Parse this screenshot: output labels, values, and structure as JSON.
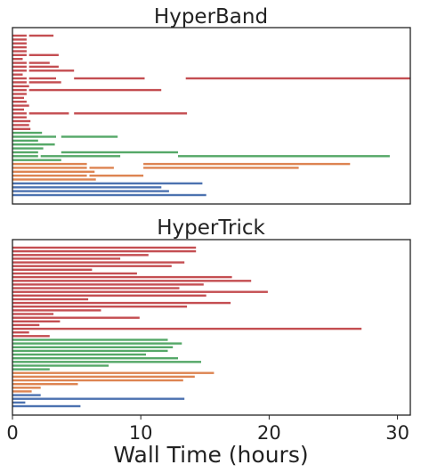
{
  "chart_data": [
    {
      "type": "bar",
      "title": "HyperBand",
      "xlabel": "Wall Time (hours)",
      "ylabel": "",
      "xlim": [
        0,
        31
      ],
      "grid": false,
      "xticks": [
        0,
        10,
        20,
        30
      ],
      "rows": [
        {
          "color": "#c44e52",
          "segments": [
            [
              0,
              1.1
            ],
            [
              1.3,
              3.2
            ]
          ]
        },
        {
          "color": "#c44e52",
          "segments": [
            [
              0,
              1.1
            ]
          ]
        },
        {
          "color": "#c44e52",
          "segments": [
            [
              0,
              1.1
            ]
          ]
        },
        {
          "color": "#c44e52",
          "segments": [
            [
              0,
              1.1
            ]
          ]
        },
        {
          "color": "#c44e52",
          "segments": [
            [
              0,
              1.1
            ]
          ]
        },
        {
          "color": "#c44e52",
          "segments": [
            [
              0,
              1.1
            ],
            [
              1.3,
              3.6
            ]
          ]
        },
        {
          "color": "#c44e52",
          "segments": [
            [
              0,
              0.8
            ]
          ]
        },
        {
          "color": "#c44e52",
          "segments": [
            [
              0,
              1.1
            ],
            [
              1.3,
              2.9
            ]
          ]
        },
        {
          "color": "#c44e52",
          "segments": [
            [
              0,
              1.1
            ],
            [
              1.3,
              3.6
            ]
          ]
        },
        {
          "color": "#c44e52",
          "segments": [
            [
              0,
              1.1
            ],
            [
              1.3,
              4.8
            ]
          ]
        },
        {
          "color": "#c44e52",
          "segments": [
            [
              0,
              0.8
            ]
          ]
        },
        {
          "color": "#c44e52",
          "segments": [
            [
              0,
              1.1
            ],
            [
              1.3,
              3.4
            ],
            [
              4.8,
              10.3
            ],
            [
              13.5,
              31
            ]
          ]
        },
        {
          "color": "#c44e52",
          "segments": [
            [
              0,
              1.1
            ],
            [
              1.3,
              3.8
            ]
          ]
        },
        {
          "color": "#c44e52",
          "segments": [
            [
              0,
              1.3
            ]
          ]
        },
        {
          "color": "#c44e52",
          "segments": [
            [
              0,
              1.1
            ],
            [
              1.3,
              11.6
            ]
          ]
        },
        {
          "color": "#c44e52",
          "segments": [
            [
              0,
              1.1
            ]
          ]
        },
        {
          "color": "#c44e52",
          "segments": [
            [
              0,
              0.9
            ]
          ]
        },
        {
          "color": "#c44e52",
          "segments": [
            [
              0,
              1.1
            ]
          ]
        },
        {
          "color": "#c44e52",
          "segments": [
            [
              0,
              1.3
            ]
          ]
        },
        {
          "color": "#c44e52",
          "segments": [
            [
              0,
              0.9
            ]
          ]
        },
        {
          "color": "#c44e52",
          "segments": [
            [
              0,
              1.1
            ],
            [
              1.3,
              4.4
            ],
            [
              4.8,
              13.6
            ]
          ]
        },
        {
          "color": "#c44e52",
          "segments": [
            [
              0,
              1.1
            ]
          ]
        },
        {
          "color": "#c44e52",
          "segments": [
            [
              0,
              1.4
            ]
          ]
        },
        {
          "color": "#c44e52",
          "segments": [
            [
              0,
              1.3
            ]
          ]
        },
        {
          "color": "#c44e52",
          "segments": [
            [
              0,
              1.4
            ]
          ]
        },
        {
          "color": "#55a868",
          "segments": [
            [
              0,
              2.3
            ]
          ]
        },
        {
          "color": "#55a868",
          "segments": [
            [
              0,
              3.4
            ],
            [
              3.8,
              8.2
            ]
          ]
        },
        {
          "color": "#55a868",
          "segments": [
            [
              0,
              2.0
            ]
          ]
        },
        {
          "color": "#55a868",
          "segments": [
            [
              0,
              3.3
            ]
          ]
        },
        {
          "color": "#55a868",
          "segments": [
            [
              0,
              2.4
            ]
          ]
        },
        {
          "color": "#55a868",
          "segments": [
            [
              0,
              2.0
            ],
            [
              3.8,
              12.9
            ]
          ]
        },
        {
          "color": "#55a868",
          "segments": [
            [
              0,
              2.0
            ],
            [
              2.2,
              8.4
            ],
            [
              12.9,
              29.4
            ]
          ]
        },
        {
          "color": "#55a868",
          "segments": [
            [
              0,
              3.8
            ]
          ]
        },
        {
          "color": "#dd8452",
          "segments": [
            [
              0,
              5.8
            ],
            [
              10.2,
              26.3
            ]
          ]
        },
        {
          "color": "#dd8452",
          "segments": [
            [
              0,
              5.8
            ],
            [
              6.0,
              7.9
            ],
            [
              10.2,
              22.3
            ]
          ]
        },
        {
          "color": "#dd8452",
          "segments": [
            [
              0,
              6.4
            ]
          ]
        },
        {
          "color": "#dd8452",
          "segments": [
            [
              0,
              5.8
            ],
            [
              6.0,
              10.2
            ]
          ]
        },
        {
          "color": "#dd8452",
          "segments": [
            [
              0,
              6.5
            ]
          ]
        },
        {
          "color": "#4c72b0",
          "segments": [
            [
              0,
              14.8
            ]
          ]
        },
        {
          "color": "#4c72b0",
          "segments": [
            [
              0,
              11.6
            ]
          ]
        },
        {
          "color": "#4c72b0",
          "segments": [
            [
              0,
              12.2
            ]
          ]
        },
        {
          "color": "#4c72b0",
          "segments": [
            [
              0,
              15.1
            ]
          ]
        }
      ]
    },
    {
      "type": "bar",
      "title": "HyperTrick",
      "xlabel": "Wall Time (hours)",
      "ylabel": "",
      "xlim": [
        0,
        31
      ],
      "grid": false,
      "xticks": [
        0,
        10,
        20,
        30
      ],
      "rows": [
        {
          "color": "#c44e52",
          "segments": [
            [
              0,
              14.3
            ]
          ]
        },
        {
          "color": "#c44e52",
          "segments": [
            [
              0,
              14.3
            ]
          ]
        },
        {
          "color": "#c44e52",
          "segments": [
            [
              0,
              10.6
            ]
          ]
        },
        {
          "color": "#c44e52",
          "segments": [
            [
              0,
              8.4
            ]
          ]
        },
        {
          "color": "#c44e52",
          "segments": [
            [
              0,
              13.4
            ]
          ]
        },
        {
          "color": "#c44e52",
          "segments": [
            [
              0,
              12.4
            ]
          ]
        },
        {
          "color": "#c44e52",
          "segments": [
            [
              0,
              6.2
            ]
          ]
        },
        {
          "color": "#c44e52",
          "segments": [
            [
              0,
              9.7
            ]
          ]
        },
        {
          "color": "#c44e52",
          "segments": [
            [
              0,
              17.1
            ]
          ]
        },
        {
          "color": "#c44e52",
          "segments": [
            [
              0,
              18.6
            ]
          ]
        },
        {
          "color": "#c44e52",
          "segments": [
            [
              0,
              14.9
            ]
          ]
        },
        {
          "color": "#c44e52",
          "segments": [
            [
              0,
              13.0
            ]
          ]
        },
        {
          "color": "#c44e52",
          "segments": [
            [
              0,
              19.9
            ]
          ]
        },
        {
          "color": "#c44e52",
          "segments": [
            [
              0,
              15.1
            ]
          ]
        },
        {
          "color": "#c44e52",
          "segments": [
            [
              0,
              5.9
            ]
          ]
        },
        {
          "color": "#c44e52",
          "segments": [
            [
              0,
              17.0
            ]
          ]
        },
        {
          "color": "#c44e52",
          "segments": [
            [
              0,
              13.6
            ]
          ]
        },
        {
          "color": "#c44e52",
          "segments": [
            [
              0,
              6.9
            ]
          ]
        },
        {
          "color": "#c44e52",
          "segments": [
            [
              0,
              3.2
            ]
          ]
        },
        {
          "color": "#c44e52",
          "segments": [
            [
              0,
              9.9
            ]
          ]
        },
        {
          "color": "#c44e52",
          "segments": [
            [
              0,
              3.7
            ]
          ]
        },
        {
          "color": "#c44e52",
          "segments": [
            [
              0,
              2.1
            ]
          ]
        },
        {
          "color": "#c44e52",
          "segments": [
            [
              0,
              27.2
            ]
          ]
        },
        {
          "color": "#c44e52",
          "segments": [
            [
              0,
              1.3
            ]
          ]
        },
        {
          "color": "#c44e52",
          "segments": [
            [
              0,
              2.9
            ]
          ]
        },
        {
          "color": "#55a868",
          "segments": [
            [
              0,
              12.1
            ]
          ]
        },
        {
          "color": "#55a868",
          "segments": [
            [
              0,
              13.2
            ]
          ]
        },
        {
          "color": "#55a868",
          "segments": [
            [
              0,
              12.5
            ]
          ]
        },
        {
          "color": "#55a868",
          "segments": [
            [
              0,
              12.1
            ]
          ]
        },
        {
          "color": "#55a868",
          "segments": [
            [
              0,
              10.4
            ]
          ]
        },
        {
          "color": "#55a868",
          "segments": [
            [
              0,
              12.9
            ]
          ]
        },
        {
          "color": "#55a868",
          "segments": [
            [
              0,
              14.7
            ]
          ]
        },
        {
          "color": "#55a868",
          "segments": [
            [
              0,
              7.5
            ]
          ]
        },
        {
          "color": "#55a868",
          "segments": [
            [
              0,
              2.9
            ]
          ]
        },
        {
          "color": "#dd8452",
          "segments": [
            [
              0,
              15.7
            ]
          ]
        },
        {
          "color": "#dd8452",
          "segments": [
            [
              0,
              14.2
            ]
          ]
        },
        {
          "color": "#dd8452",
          "segments": [
            [
              0,
              13.3
            ]
          ]
        },
        {
          "color": "#dd8452",
          "segments": [
            [
              0,
              5.1
            ]
          ]
        },
        {
          "color": "#dd8452",
          "segments": [
            [
              0,
              2.2
            ]
          ]
        },
        {
          "color": "#dd8452",
          "segments": [
            [
              0,
              1.5
            ]
          ]
        },
        {
          "color": "#4c72b0",
          "segments": [
            [
              0,
              2.2
            ]
          ]
        },
        {
          "color": "#4c72b0",
          "segments": [
            [
              0,
              13.4
            ]
          ]
        },
        {
          "color": "#4c72b0",
          "segments": [
            [
              0,
              1.0
            ]
          ]
        },
        {
          "color": "#4c72b0",
          "segments": [
            [
              0,
              5.3
            ]
          ]
        }
      ]
    }
  ]
}
